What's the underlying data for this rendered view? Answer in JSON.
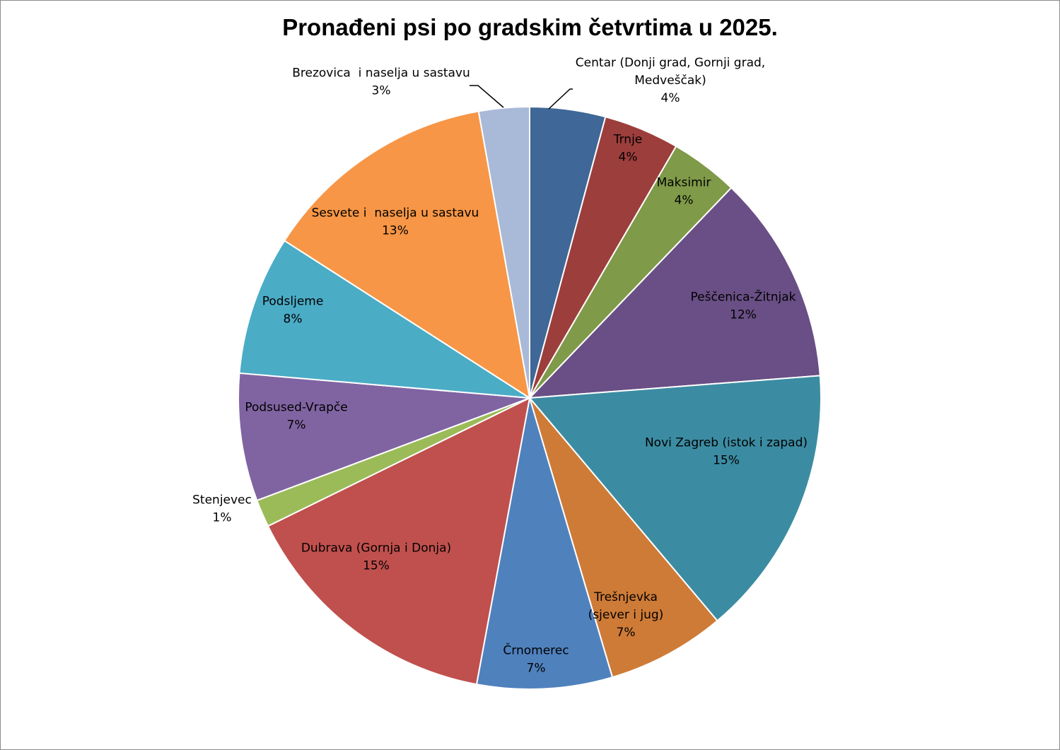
{
  "chart_data": {
    "type": "pie",
    "title": "Pronađeni psi po gradskim četvrtima u 2025.",
    "slices": [
      {
        "name": "Centar (Donji grad, Gornji grad, Medveščak)",
        "label_lines": [
          "Centar (Donji grad, Gornji grad,",
          "Medveščak)"
        ],
        "value": 4,
        "value_label": "4%",
        "color": "#3F6797"
      },
      {
        "name": "Trnje",
        "label_lines": [
          "Trnje"
        ],
        "value": 4,
        "value_label": "4%",
        "color": "#9C3E3C"
      },
      {
        "name": "Maksimir",
        "label_lines": [
          "Maksimir"
        ],
        "value": 4,
        "value_label": "4%",
        "color": "#7F9A48"
      },
      {
        "name": "Pešćenica-Žitnjak",
        "label_lines": [
          "Peščenica-Žitnjak"
        ],
        "value": 12,
        "value_label": "12%",
        "color": "#694F85"
      },
      {
        "name": "Novi Zagreb (istok i zapad)",
        "label_lines": [
          "Novi Zagreb (istok i zapad)"
        ],
        "value": 15,
        "value_label": "15%",
        "color": "#3B8CA2"
      },
      {
        "name": "Trešnjevka (sjever i jug)",
        "label_lines": [
          "Trešnjevka",
          "(sjever i jug)"
        ],
        "value": 7,
        "value_label": "7%",
        "color": "#CE7B37"
      },
      {
        "name": "Črnomerec",
        "label_lines": [
          "Črnomerec"
        ],
        "value": 7,
        "value_label": "7%",
        "color": "#4F81BD"
      },
      {
        "name": "Dubrava (Gornja i Donja)",
        "label_lines": [
          "Dubrava (Gornja i Donja)"
        ],
        "value": 15,
        "value_label": "15%",
        "color": "#C0504D"
      },
      {
        "name": "Stenjevec",
        "label_lines": [
          "Stenjevec"
        ],
        "value": 1,
        "value_label": "1%",
        "color": "#9BBB59"
      },
      {
        "name": "Podsused-Vrapče",
        "label_lines": [
          "Podsused-Vrapče"
        ],
        "value": 7,
        "value_label": "7%",
        "color": "#8064A2"
      },
      {
        "name": "Podsljeme",
        "label_lines": [
          "Podsljeme"
        ],
        "value": 8,
        "value_label": "8%",
        "color": "#4BACC6"
      },
      {
        "name": "Sesvete i naselja u sastavu",
        "label_lines": [
          "Sesvete i  naselja u sastavu"
        ],
        "value": 13,
        "value_label": "13%",
        "color": "#F79646"
      },
      {
        "name": "Brezovica i naselja u sastavu",
        "label_lines": [
          "Brezovica  i naselja u sastavu"
        ],
        "value": 3,
        "value_label": "3%",
        "color": "#A9B9D8"
      }
    ]
  }
}
